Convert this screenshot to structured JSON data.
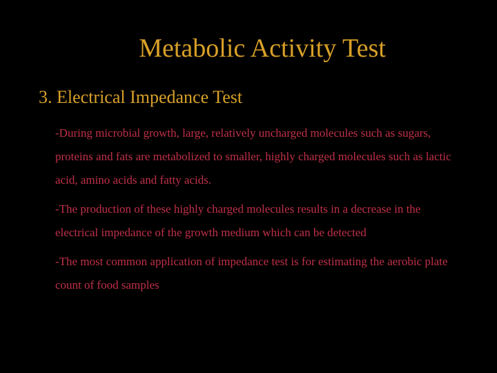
{
  "colors": {
    "background": "#000000",
    "title": "#d8a028",
    "subtitle": "#d8a028",
    "body": "#c03048"
  },
  "title": "Metabolic Activity Test",
  "subtitle": "3. Electrical Impedance Test",
  "paragraphs": [
    "-During microbial growth, large, relatively uncharged molecules such as sugars, proteins and fats are metabolized to smaller, highly charged molecules such as lactic acid, amino acids and fatty acids.",
    "-The production of these highly charged molecules results in a decrease in the electrical impedance of the growth medium which can be detected",
    "-The most common application of impedance test is for estimating the aerobic plate count of food samples"
  ],
  "typography": {
    "title_fontsize": 38,
    "subtitle_fontsize": 26,
    "body_fontsize": 17,
    "body_lineheight": 2.0
  }
}
